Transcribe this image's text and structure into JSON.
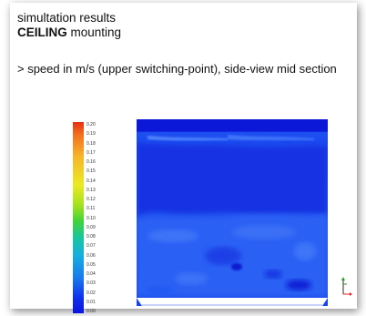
{
  "header": {
    "line1": "simultation results",
    "line2_bold": "CEILING",
    "line2_rest": " mounting"
  },
  "description": "> speed in m/s (upper switching-point), side-view mid section",
  "legend": {
    "ticks": [
      "0.20",
      "0.19",
      "0.18",
      "0.17",
      "0.16",
      "0.15",
      "0.14",
      "0.13",
      "0.12",
      "0.11",
      "0.10",
      "0.09",
      "0.08",
      "0.07",
      "0.06",
      "0.05",
      "0.04",
      "0.03",
      "0.02",
      "0.01",
      "0.00"
    ]
  },
  "colors": {
    "field_dark": "#0b17d6",
    "field_mid": "#1a3fe8",
    "field_light": "#2f66f2",
    "field_top": "#0e22df"
  },
  "icons": {
    "axis": "axis-triad-icon"
  }
}
